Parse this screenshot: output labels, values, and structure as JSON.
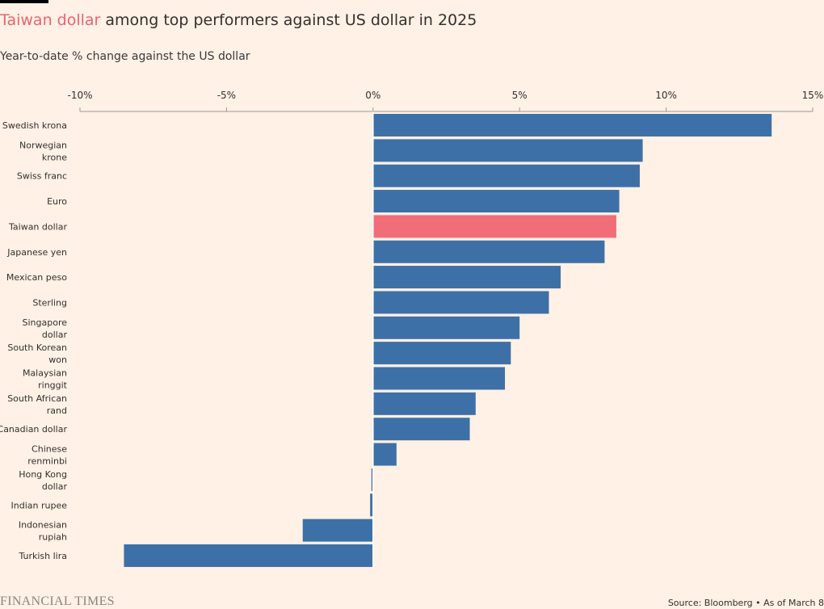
{
  "title": {
    "highlight": "Taiwan dollar",
    "rest": " among top performers against US dollar in 2025"
  },
  "subtitle": "Year-to-date % change against the US dollar",
  "footer": {
    "logo": "FINANCIAL TIMES",
    "source": "Source: Bloomberg • As of March 8"
  },
  "colors": {
    "bar": "#3e70a8",
    "highlight": "#f16d78",
    "axis": "#999999",
    "text": "#33302e"
  },
  "chart_data": {
    "type": "bar",
    "orientation": "horizontal",
    "title": "Taiwan dollar among top performers against US dollar in 2025",
    "xlabel": "Year-to-date % change against the US dollar",
    "ylabel": "",
    "xlim": [
      -10,
      15
    ],
    "xticks": [
      -10,
      -5,
      0,
      5,
      10,
      15
    ],
    "xtick_labels": [
      "-10%",
      "-5%",
      "0%",
      "5%",
      "10%",
      "15%"
    ],
    "categories": [
      "Swedish krona",
      "Norwegian krone",
      "Swiss franc",
      "Euro",
      "Taiwan dollar",
      "Japanese yen",
      "Mexican peso",
      "Sterling",
      "Singapore dollar",
      "South Korean won",
      "Malaysian ringgit",
      "South African rand",
      "Canadian dollar",
      "Chinese renminbi",
      "Hong Kong dollar",
      "Indian rupee",
      "Indonesian rupiah",
      "Turkish lira"
    ],
    "label_lines": [
      [
        "Swedish krona"
      ],
      [
        "Norwegian",
        "krone"
      ],
      [
        "Swiss franc"
      ],
      [
        "Euro"
      ],
      [
        "Taiwan dollar"
      ],
      [
        "Japanese yen"
      ],
      [
        "Mexican peso"
      ],
      [
        "Sterling"
      ],
      [
        "Singapore",
        "dollar"
      ],
      [
        "South Korean",
        "won"
      ],
      [
        "Malaysian",
        "ringgit"
      ],
      [
        "South African",
        "rand"
      ],
      [
        "Canadian dollar"
      ],
      [
        "Chinese",
        "renminbi"
      ],
      [
        "Hong Kong",
        "dollar"
      ],
      [
        "Indian rupee"
      ],
      [
        "Indonesian",
        "rupiah"
      ],
      [
        "Turkish lira"
      ]
    ],
    "values": [
      13.6,
      9.2,
      9.1,
      8.4,
      8.3,
      7.9,
      6.4,
      6.0,
      5.0,
      4.7,
      4.5,
      3.5,
      3.3,
      0.8,
      -0.05,
      -0.1,
      -2.4,
      -8.5
    ],
    "highlight_index": 4,
    "grid": false
  }
}
